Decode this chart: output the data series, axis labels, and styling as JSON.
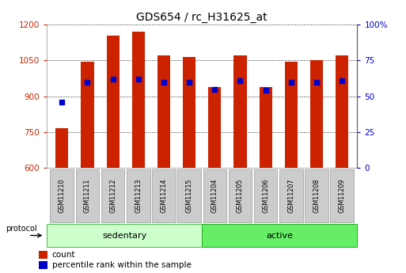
{
  "title": "GDS654 / rc_H31625_at",
  "samples": [
    "GSM11210",
    "GSM11211",
    "GSM11212",
    "GSM11213",
    "GSM11214",
    "GSM11215",
    "GSM11204",
    "GSM11205",
    "GSM11206",
    "GSM11207",
    "GSM11208",
    "GSM11209"
  ],
  "count_values": [
    765,
    1045,
    1155,
    1170,
    1070,
    1065,
    940,
    1070,
    940,
    1045,
    1050,
    1070
  ],
  "percentile_values": [
    46,
    60,
    62,
    62,
    60,
    60,
    55,
    61,
    54,
    60,
    60,
    61
  ],
  "ylim_left": [
    600,
    1200
  ],
  "ylim_right": [
    0,
    100
  ],
  "yticks_left": [
    600,
    750,
    900,
    1050,
    1200
  ],
  "yticks_right": [
    0,
    25,
    50,
    75,
    100
  ],
  "sedentary_color": "#ccffcc",
  "active_color": "#66ee66",
  "sedentary_border": "#44bb44",
  "active_border": "#22aa22",
  "protocol_label": "protocol",
  "bar_color": "#cc2200",
  "percentile_color": "#0000cc",
  "bar_width": 0.5,
  "left_tick_color": "#cc2200",
  "right_tick_color": "#0000cc",
  "legend_count_color": "#cc2200",
  "legend_pct_color": "#0000cc",
  "sample_box_color": "#cccccc",
  "sample_box_edge": "#999999"
}
